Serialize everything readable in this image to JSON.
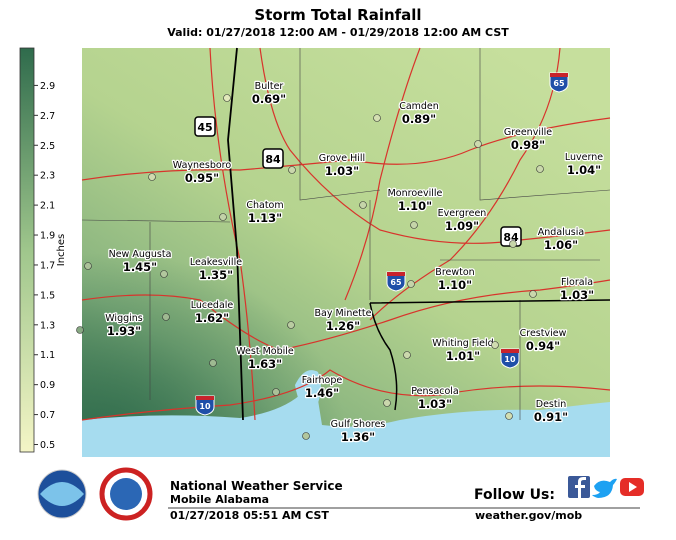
{
  "header": {
    "title": "Storm Total Rainfall",
    "subtitle": "Valid: 01/27/2018 12:00 AM - 01/29/2018 12:00 AM CST"
  },
  "colorbar": {
    "title": "Inches",
    "range": [
      0.45,
      3.15
    ],
    "ticks": [
      0.5,
      0.7,
      0.9,
      1.1,
      1.3,
      1.5,
      1.7,
      1.9,
      2.1,
      2.3,
      2.5,
      2.7,
      2.9
    ],
    "low_color": "#f4f5c6",
    "high_color": "#2f6b4c"
  },
  "locations": [
    {
      "name": "Bulter",
      "value": 0.69,
      "label": "0.69\""
    },
    {
      "name": "Camden",
      "value": 0.89,
      "label": "0.89\""
    },
    {
      "name": "Greenville",
      "value": 0.98,
      "label": "0.98\""
    },
    {
      "name": "Luverne",
      "value": 1.04,
      "label": "1.04\""
    },
    {
      "name": "Waynesboro",
      "value": 0.95,
      "label": "0.95\""
    },
    {
      "name": "Grove Hill",
      "value": 1.03,
      "label": "1.03\""
    },
    {
      "name": "Chatom",
      "value": 1.13,
      "label": "1.13\""
    },
    {
      "name": "Monroeville",
      "value": 1.1,
      "label": "1.10\""
    },
    {
      "name": "Evergreen",
      "value": 1.09,
      "label": "1.09\""
    },
    {
      "name": "Andalusia",
      "value": 1.06,
      "label": "1.06\""
    },
    {
      "name": "New Augusta",
      "value": 1.45,
      "label": "1.45\""
    },
    {
      "name": "Leakesville",
      "value": 1.35,
      "label": "1.35\""
    },
    {
      "name": "Brewton",
      "value": 1.1,
      "label": "1.10\""
    },
    {
      "name": "Florala",
      "value": 1.03,
      "label": "1.03\""
    },
    {
      "name": "Wiggins",
      "value": 1.93,
      "label": "1.93\""
    },
    {
      "name": "Lucedale",
      "value": 1.62,
      "label": "1.62\""
    },
    {
      "name": "Bay Minette",
      "value": 1.26,
      "label": "1.26\""
    },
    {
      "name": "Whiting Field",
      "value": 1.01,
      "label": "1.01\""
    },
    {
      "name": "Crestview",
      "value": 0.94,
      "label": "0.94\""
    },
    {
      "name": "West Mobile",
      "value": 1.63,
      "label": "1.63\""
    },
    {
      "name": "Fairhope",
      "value": 1.46,
      "label": "1.46\""
    },
    {
      "name": "Pensacola",
      "value": 1.03,
      "label": "1.03\""
    },
    {
      "name": "Destin",
      "value": 0.91,
      "label": "0.91\""
    },
    {
      "name": "Gulf Shores",
      "value": 1.36,
      "label": "1.36\""
    }
  ],
  "highway_shields": [
    "45",
    "84",
    "84",
    "65",
    "65",
    "10",
    "10"
  ],
  "footer": {
    "office": "National Weather Service",
    "location": "Mobile Alabama",
    "issued": "01/27/2018 05:51 AM CST",
    "follow": "Follow Us:",
    "website": "weather.gov/mob"
  }
}
